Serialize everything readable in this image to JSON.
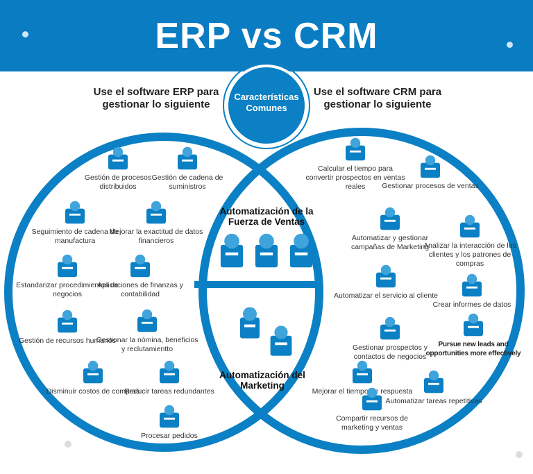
{
  "title": "ERP vs CRM",
  "colors": {
    "primary": "#0a7cc1",
    "circle_stroke": "#0b80c4",
    "text": "#333333"
  },
  "erp": {
    "heading": "Use el software ERP para gestionar lo siguiente",
    "items": [
      {
        "label": "Gestión de procesos distribuidos",
        "icon": "database-network-icon"
      },
      {
        "label": "Gestión de cadena de suministros",
        "icon": "supply-chain-icon"
      },
      {
        "label": "Seguimiento de cadena de manufactura",
        "icon": "factory-icon"
      },
      {
        "label": "Mejorar la exactitud de datos financieros",
        "icon": "financial-chart-icon"
      },
      {
        "label": "Estandarizar procedimientos de negocios",
        "icon": "document-certificate-icon"
      },
      {
        "label": "Aplicaciones de finanzas y contabilidad",
        "icon": "calculator-icon"
      },
      {
        "label": "Gestión de recursos humanos",
        "icon": "people-hierarchy-icon"
      },
      {
        "label": "Gestionar la nómina, beneficios y reclutamientto",
        "icon": "payroll-icon"
      },
      {
        "label": "Disminuir costos de compras",
        "icon": "bar-chart-down-icon"
      },
      {
        "label": "Reducir tareas redundantes",
        "icon": "infinity-loop-icon"
      },
      {
        "label": "Procesar pedidos",
        "icon": "process-flow-icon"
      }
    ]
  },
  "common": {
    "heading": "Características Comunes",
    "items": [
      {
        "label": "Automatización de la Fuerza de Ventas",
        "icon": "sales-agents-icon"
      },
      {
        "label": "Automatización del Marketing",
        "icon": "marketing-icon"
      }
    ]
  },
  "crm": {
    "heading": "Use el software CRM para gestionar lo siguiente",
    "items": [
      {
        "label": "Calcular el tiempo para convertir prospectos en ventas reales",
        "icon": "hourglass-money-icon"
      },
      {
        "label": "Gestionar procesos de ventas",
        "icon": "sales-agent-icon"
      },
      {
        "label": "Automatizar y gestionar campañas de Marketing",
        "icon": "megaphone-icon"
      },
      {
        "label": "Analizar la interacción de los clientes y los patrones de compras",
        "icon": "analytics-magnifier-icon"
      },
      {
        "label": "Automatizar el servicio al cliente",
        "icon": "customer-service-icon"
      },
      {
        "label": "Crear informes de datos",
        "icon": "report-icon"
      },
      {
        "label": "Gestionar prospectos y contactos de negocios",
        "icon": "handshake-icon"
      },
      {
        "label": "Pursue new leads and opportunities more effectively",
        "icon": "funnel-icon"
      },
      {
        "label": "Mejorar el tiempo de respuesta",
        "icon": "pointing-hand-icon"
      },
      {
        "label": "Automatizar tareas repetitivas",
        "icon": "touch-automation-icon"
      },
      {
        "label": "Compartir recursos de marketing y ventas",
        "icon": "presentation-icon"
      }
    ]
  }
}
